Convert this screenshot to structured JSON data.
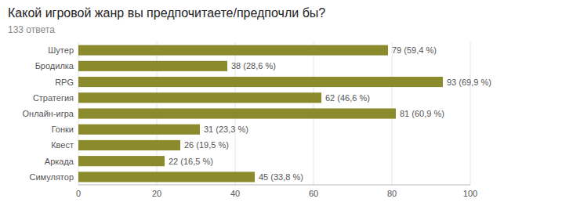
{
  "chart_data": {
    "type": "bar",
    "orientation": "horizontal",
    "title": "Какой игровой жанр вы предпочитаете/предпочли бы?",
    "subtitle": "133 ответа",
    "categories": [
      "Шутер",
      "Бродилка",
      "RPG",
      "Стратегия",
      "Онлайн-игра",
      "Гонки",
      "Квест",
      "Аркада",
      "Симулятор"
    ],
    "values": [
      79,
      38,
      93,
      62,
      81,
      31,
      26,
      22,
      45
    ],
    "value_labels": [
      "79 (59,4 %)",
      "38 (28,6 %)",
      "93 (69,9 %)",
      "62 (46,6 %)",
      "81 (60,9 %)",
      "31 (23,3 %)",
      "26 (19,5 %)",
      "22 (16,5 %)",
      "45 (33,8 %)"
    ],
    "color": "#8B8B2E",
    "xlim": [
      0,
      100
    ],
    "xticks": [
      0,
      20,
      40,
      60,
      80,
      100
    ],
    "grid": true,
    "data_labels": true
  }
}
